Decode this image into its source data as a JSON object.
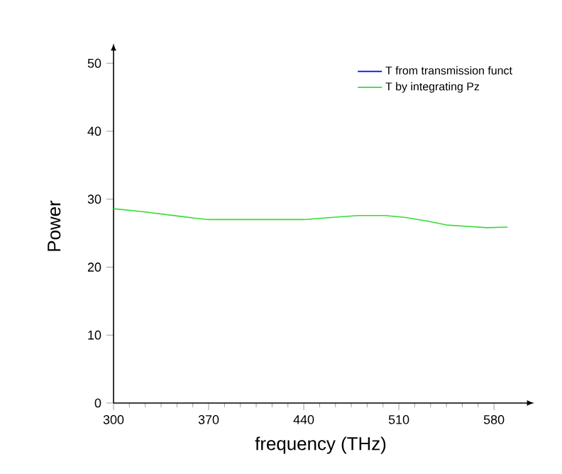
{
  "chart_data": {
    "type": "line",
    "xlabel": "frequency  (THz)",
    "ylabel": "Power",
    "x": [
      300,
      320,
      340,
      360,
      370,
      400,
      440,
      460,
      480,
      500,
      515,
      530,
      545,
      560,
      575,
      590
    ],
    "series": [
      {
        "name": "T from transmission funct",
        "color": "#0000ff",
        "values": [
          null,
          null,
          null,
          null,
          null,
          null,
          null,
          null,
          null,
          null,
          null,
          null,
          null,
          null,
          null,
          null
        ]
      },
      {
        "name": "T by integrating Pz",
        "color": "#33dd33",
        "values": [
          28.6,
          28.2,
          27.7,
          27.2,
          27.0,
          27.0,
          27.0,
          27.3,
          27.6,
          27.6,
          27.3,
          26.8,
          26.2,
          26.0,
          25.8,
          25.9
        ]
      }
    ],
    "xlim": [
      300,
      605
    ],
    "ylim": [
      0,
      52
    ],
    "xticks": [
      300,
      370,
      440,
      510,
      580
    ],
    "yticks": [
      0,
      10,
      20,
      30,
      40,
      50
    ],
    "legend": "top right",
    "grid": false,
    "marker": "none",
    "line_style": "solid"
  }
}
